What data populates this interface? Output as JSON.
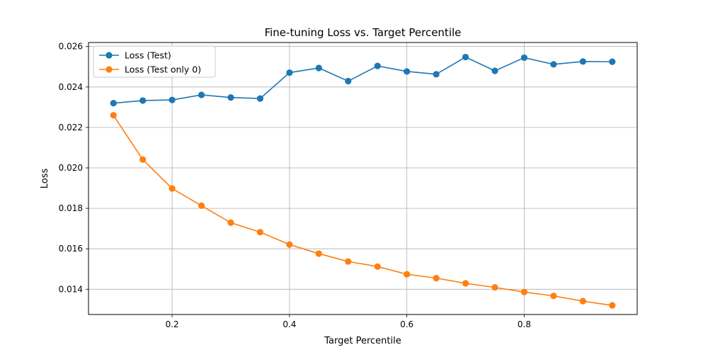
{
  "chart_data": {
    "type": "line",
    "title": "Fine-tuning Loss vs. Target Percentile",
    "xlabel": "Target Percentile",
    "ylabel": "Loss",
    "xlim": [
      0.0575,
      0.9925
    ],
    "ylim": [
      0.01275,
      0.0262
    ],
    "x_ticks": [
      0.2,
      0.4,
      0.6,
      0.8
    ],
    "x_tick_labels": [
      "0.2",
      "0.4",
      "0.6",
      "0.8"
    ],
    "y_ticks": [
      0.014,
      0.016,
      0.018,
      0.02,
      0.022,
      0.024,
      0.026
    ],
    "y_tick_labels": [
      "0.014",
      "0.016",
      "0.018",
      "0.020",
      "0.022",
      "0.024",
      "0.026"
    ],
    "grid": true,
    "legend_position": "top-left",
    "x": [
      0.1,
      0.15,
      0.2,
      0.25,
      0.3,
      0.35,
      0.4,
      0.45,
      0.5,
      0.55,
      0.6,
      0.65,
      0.7,
      0.75,
      0.8,
      0.85,
      0.9,
      0.95
    ],
    "series": [
      {
        "name": "Loss (Test)",
        "color": "#1f77b4",
        "values": [
          0.0232,
          0.02333,
          0.02336,
          0.02361,
          0.02348,
          0.02343,
          0.02471,
          0.02494,
          0.02429,
          0.02504,
          0.02477,
          0.02463,
          0.02548,
          0.0248,
          0.02545,
          0.02512,
          0.02526,
          0.02525
        ]
      },
      {
        "name": "Loss (Test only 0)",
        "color": "#ff7f0e",
        "values": [
          0.0226,
          0.02041,
          0.01898,
          0.01813,
          0.01729,
          0.01682,
          0.01621,
          0.01576,
          0.01537,
          0.01512,
          0.01474,
          0.01455,
          0.01429,
          0.01409,
          0.01386,
          0.01367,
          0.01341,
          0.0132
        ]
      }
    ]
  }
}
